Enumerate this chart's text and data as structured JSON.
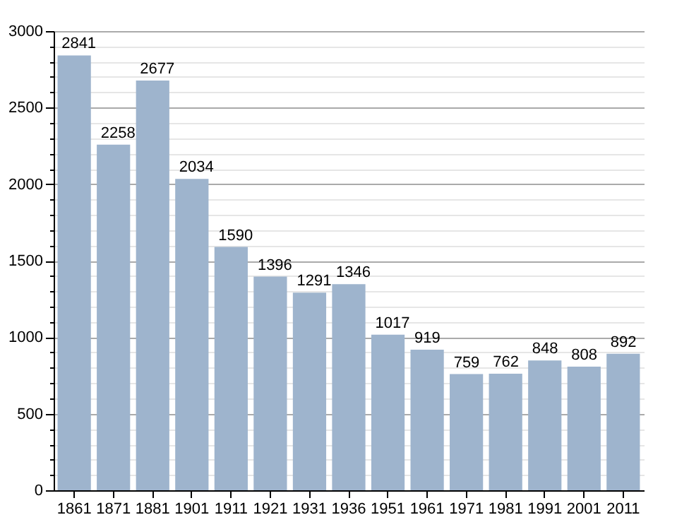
{
  "chart_data": {
    "type": "bar",
    "categories": [
      "1861",
      "1871",
      "1881",
      "1901",
      "1911",
      "1921",
      "1931",
      "1936",
      "1951",
      "1961",
      "1971",
      "1981",
      "1991",
      "2001",
      "2011"
    ],
    "values": [
      2841,
      2258,
      2677,
      2034,
      1590,
      1396,
      1291,
      1346,
      1017,
      919,
      759,
      762,
      848,
      808,
      892
    ],
    "color": "#9eb4cd",
    "ylim": [
      0,
      3000
    ],
    "yticks": [
      0,
      {
        "value": 100,
        "label": null
      },
      {
        "value": 200,
        "label": null
      },
      {
        "value": 300,
        "label": null
      },
      {
        "value": 400,
        "label": null
      },
      500,
      {
        "value": 600,
        "label": null
      },
      {
        "value": 700,
        "label": null
      },
      {
        "value": 800,
        "label": null
      },
      {
        "value": 900,
        "label": null
      },
      1000,
      {
        "value": 1100,
        "label": null
      },
      {
        "value": 1200,
        "label": null
      },
      {
        "value": 1300,
        "label": null
      },
      {
        "value": 1400,
        "label": null
      },
      1500,
      {
        "value": 1600,
        "label": null
      },
      {
        "value": 1700,
        "label": null
      },
      {
        "value": 1800,
        "label": null
      },
      {
        "value": 1900,
        "label": null
      },
      2000,
      {
        "value": 2100,
        "label": null
      },
      {
        "value": 2200,
        "label": null
      },
      {
        "value": 2300,
        "label": null
      },
      {
        "value": 2400,
        "label": null
      },
      2500,
      {
        "value": 2600,
        "label": null
      },
      {
        "value": 2700,
        "label": null
      },
      {
        "value": 2800,
        "label": null
      },
      {
        "value": 2900,
        "label": null
      },
      3000
    ],
    "grid": true,
    "data_labels": true
  }
}
